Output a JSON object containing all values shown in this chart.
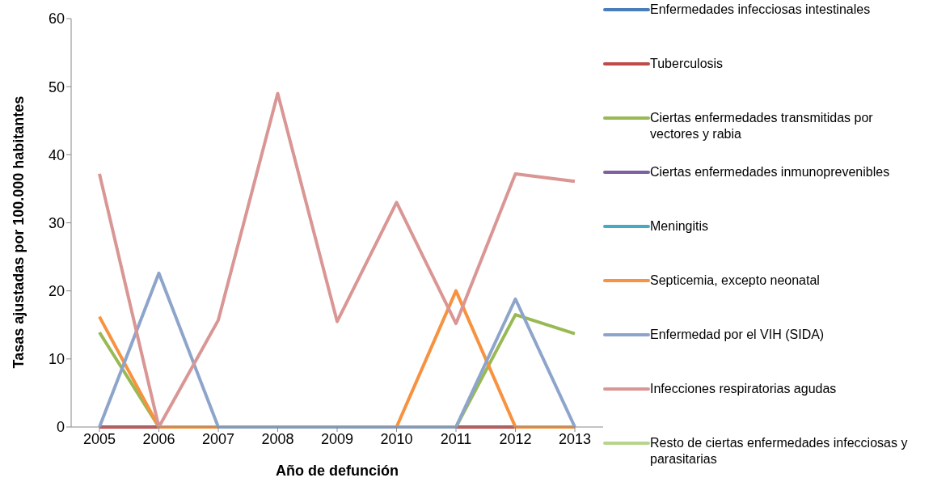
{
  "chart_data": {
    "type": "line",
    "xlabel": "Año de defunción",
    "ylabel": "Tasas ajustadas por 100.000 habitantes",
    "categories": [
      "2005",
      "2006",
      "2007",
      "2008",
      "2009",
      "2010",
      "2011",
      "2012",
      "2013"
    ],
    "ylim": [
      0,
      60
    ],
    "yticks": [
      0,
      10,
      20,
      30,
      40,
      50,
      60
    ],
    "grid": false,
    "legend": "right",
    "marker": "none",
    "series": [
      {
        "name": "Enfermedades infecciosas intestinales",
        "color": "#4a7ebb",
        "values": [
          null,
          null,
          null,
          null,
          null,
          null,
          null,
          null,
          null
        ]
      },
      {
        "name": "Tuberculosis",
        "color": "#be4b48",
        "values": [
          0,
          0,
          null,
          null,
          null,
          null,
          0,
          0,
          null
        ]
      },
      {
        "name": "Ciertas enfermedades transmitidas por vectores y rabia",
        "color": "#98b954",
        "values": [
          13.9,
          0,
          null,
          null,
          null,
          null,
          0,
          16.5,
          13.7
        ]
      },
      {
        "name": "Ciertas enfermedades inmunoprevenibles",
        "color": "#7d60a0",
        "values": [
          null,
          null,
          null,
          null,
          null,
          null,
          null,
          null,
          null
        ]
      },
      {
        "name": "Meningitis",
        "color": "#46aac5",
        "values": [
          null,
          null,
          null,
          null,
          null,
          null,
          null,
          null,
          null
        ]
      },
      {
        "name": "Septicemia, excepto neonatal",
        "color": "#f69240",
        "values": [
          16.2,
          0,
          0,
          null,
          null,
          0,
          20,
          0,
          0
        ]
      },
      {
        "name": "Enfermedad por el VIH (SIDA)",
        "color": "#8ea5cb",
        "values": [
          0,
          22.6,
          0,
          0,
          0,
          0,
          0,
          18.8,
          0
        ]
      },
      {
        "name": "Infecciones respiratorias agudas",
        "color": "#d99694",
        "values": [
          37.2,
          0,
          15.7,
          49,
          15.5,
          33,
          15.2,
          37.2,
          36.1
        ]
      },
      {
        "name": "Resto de ciertas enfermedades infecciosas y parasitarias",
        "color": "#b7d48f",
        "values": [
          null,
          null,
          null,
          null,
          null,
          null,
          null,
          null,
          null
        ]
      }
    ]
  }
}
